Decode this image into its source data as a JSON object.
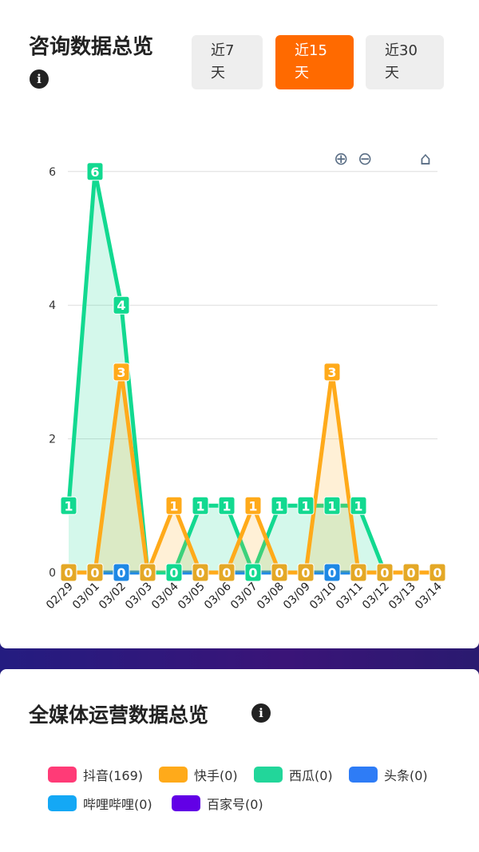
{
  "consult": {
    "title": "咨询数据总览",
    "info_icon": "info-icon",
    "ranges": [
      {
        "label": "近7\n天"
      },
      {
        "label": "近15\n天",
        "active": true
      },
      {
        "label": "近30\n天"
      }
    ]
  },
  "chart_data": {
    "type": "line",
    "categories": [
      "02/29",
      "03/01",
      "03/02",
      "03/03",
      "03/04",
      "03/05",
      "03/06",
      "03/07",
      "03/08",
      "03/09",
      "03/10",
      "03/11",
      "03/12",
      "03/13",
      "03/14"
    ],
    "yticks": [
      "0",
      "2",
      "4",
      "6"
    ],
    "ylim": [
      0,
      6
    ],
    "series": [
      {
        "name": "头条",
        "color": "#1e88e5",
        "values": [
          0,
          0,
          0,
          0,
          0,
          0,
          0,
          0,
          0,
          0,
          0,
          0,
          0,
          0,
          0
        ]
      },
      {
        "name": "西瓜",
        "color": "#12d990",
        "values": [
          1,
          6,
          4,
          0,
          0,
          1,
          1,
          0,
          1,
          1,
          1,
          1,
          0,
          0,
          0
        ]
      },
      {
        "name": "快手",
        "color": "#ffaa1a",
        "values": [
          0,
          0,
          3,
          0,
          1,
          0,
          0,
          1,
          0,
          0,
          3,
          0,
          0,
          0,
          0
        ]
      }
    ],
    "zero_label_series": [
      "快手",
      "快手",
      "头条",
      "快手",
      "西瓜",
      "快手",
      "快手",
      "西瓜",
      "快手",
      "快手",
      "头条",
      "快手",
      "快手",
      "快手",
      "快手"
    ]
  },
  "media": {
    "title": "全媒体运营数据总览",
    "legend": [
      {
        "label": "抖音(169)",
        "color": "#ff3b77"
      },
      {
        "label": "快手(0)",
        "color": "#ffaa1a"
      },
      {
        "label": "西瓜(0)",
        "color": "#22d69a"
      },
      {
        "label": "头条(0)",
        "color": "#2e7cf6"
      },
      {
        "label": "哔哩哔哩(0)",
        "color": "#14a8f5"
      },
      {
        "label": "百家号(0)",
        "color": "#6200e6"
      }
    ]
  }
}
